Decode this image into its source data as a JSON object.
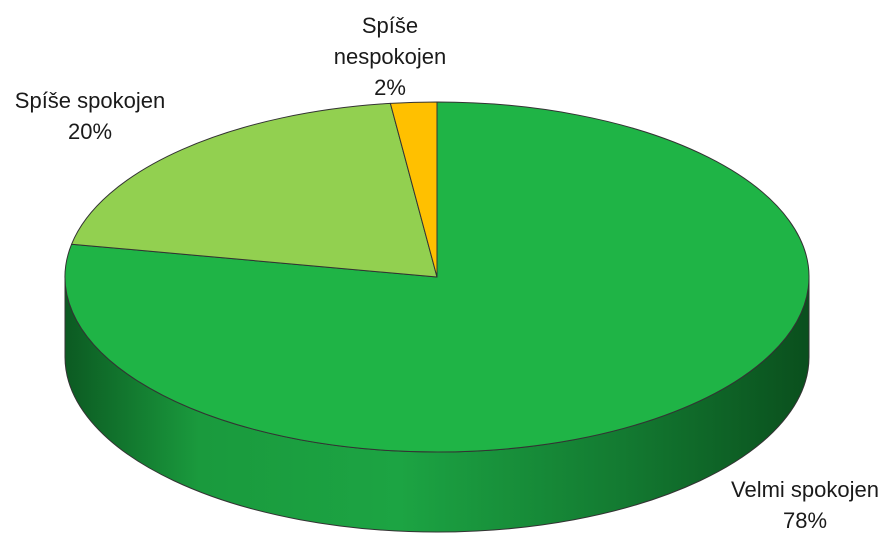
{
  "chart_data": {
    "type": "pie",
    "style": "3d",
    "slices": [
      {
        "label_lines": [
          "Velmi spokojen"
        ],
        "percent_label": "78%",
        "value": 78,
        "color": "#1fb446"
      },
      {
        "label_lines": [
          "Spíše spokojen"
        ],
        "percent_label": "20%",
        "value": 20,
        "color": "#92d050"
      },
      {
        "label_lines": [
          "Spíše",
          "nespokojen"
        ],
        "percent_label": "2%",
        "value": 2,
        "color": "#ffc000"
      }
    ],
    "start_angle_deg": 0,
    "direction": "clockwise",
    "legend": "none"
  }
}
